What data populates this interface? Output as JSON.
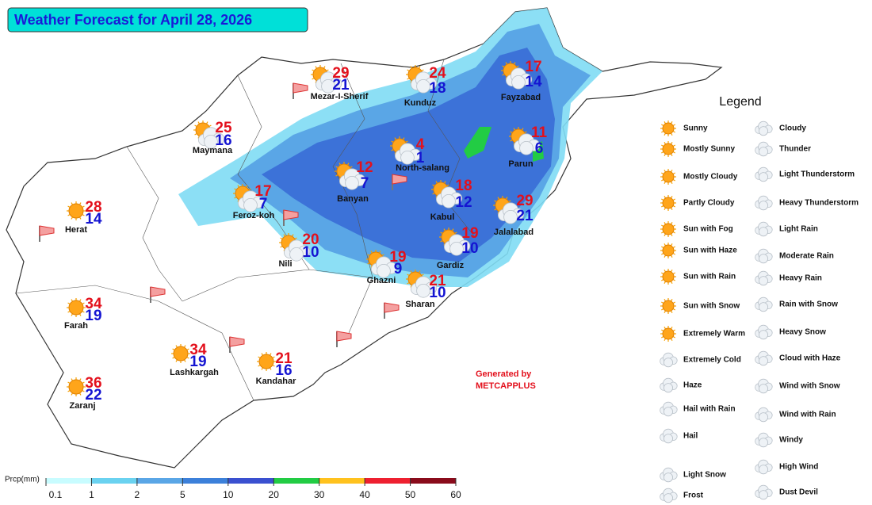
{
  "title": "Weather Forecast for April 28, 2026",
  "cities": [
    {
      "name": "Mezar-I-Sherif",
      "max": 29,
      "min": 21
    },
    {
      "name": "Kunduz",
      "max": 24,
      "min": 18
    },
    {
      "name": "Fayzabad",
      "max": 17,
      "min": 14
    },
    {
      "name": "Maymana",
      "max": 25,
      "min": 16
    },
    {
      "name": "North-salang",
      "max": 4,
      "min": 1
    },
    {
      "name": "Parun",
      "max": 11,
      "min": 6
    },
    {
      "name": "Banyan",
      "max": 12,
      "min": 7
    },
    {
      "name": "Feroz-koh",
      "max": 17,
      "min": 7
    },
    {
      "name": "Kabul",
      "max": 18,
      "min": 12
    },
    {
      "name": "Jalalabad",
      "max": 29,
      "min": 21
    },
    {
      "name": "Herat",
      "max": 28,
      "min": 14
    },
    {
      "name": "Nili",
      "max": 20,
      "min": 10
    },
    {
      "name": "Gardiz",
      "max": 19,
      "min": 10
    },
    {
      "name": "Ghazni",
      "max": 19,
      "min": 9
    },
    {
      "name": "Sharan",
      "max": 21,
      "min": 10
    },
    {
      "name": "Farah",
      "max": 34,
      "min": 19
    },
    {
      "name": "Lashkargah",
      "max": 34,
      "min": 19
    },
    {
      "name": "Kandahar",
      "max": 21,
      "min": 16
    },
    {
      "name": "Zaranj",
      "max": 36,
      "min": 22
    }
  ],
  "legend": {
    "title": "Legend",
    "left": [
      "Sunny",
      "Mostly Sunny",
      "Mostly Cloudy",
      "Partly Cloudy",
      "Sun with Fog",
      "Sun with Haze",
      "Sun with Rain",
      "Sun with Snow",
      "Extremely Warm",
      "Extremely Cold",
      "Haze",
      "Hail with Rain",
      "Hail",
      "Light Snow",
      "Frost"
    ],
    "right": [
      "Cloudy",
      "Thunder",
      "Light Thunderstorm",
      "Heavy Thunderstorm",
      "Light Rain",
      "Moderate Rain",
      "Heavy Rain",
      "Rain with Snow",
      "Heavy Snow",
      "Cloud with Haze",
      "Wind with Snow",
      "Wind with Rain",
      "Windy",
      "High Wind",
      "Dust Devil"
    ]
  },
  "credit": {
    "line1": "Generated by",
    "line2": "METCAPPLUS"
  },
  "colorbar": {
    "label": "Prcp(mm)",
    "ticks": [
      0.1,
      1,
      2,
      5,
      10,
      20,
      30,
      40,
      50,
      60
    ],
    "colors": [
      "#c8fcff",
      "#6ad2f0",
      "#5aa6e6",
      "#3c80da",
      "#3a50d0",
      "#22cc44",
      "#ffc21e",
      "#ee2030",
      "#8a0b1b"
    ]
  }
}
